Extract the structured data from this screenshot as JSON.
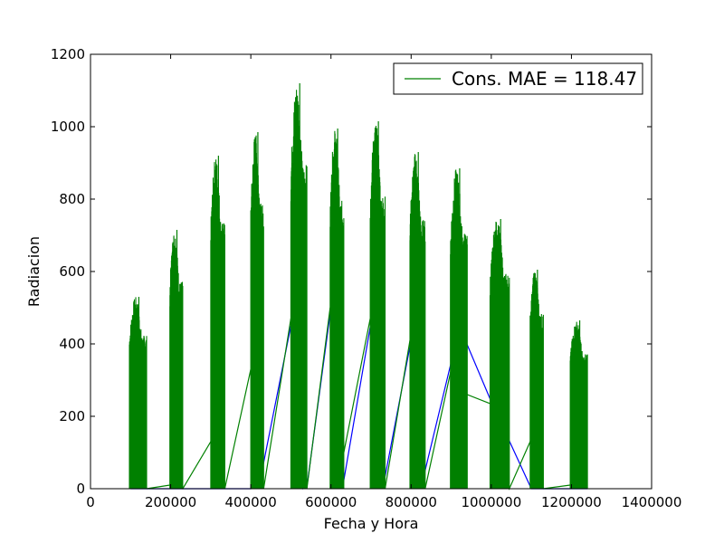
{
  "chart_data": {
    "type": "line",
    "title": "",
    "xlabel": "Fecha y Hora",
    "ylabel": "Radiacion",
    "xlim": [
      0,
      1400000
    ],
    "ylim": [
      0,
      1200
    ],
    "xticks": [
      0,
      200000,
      400000,
      600000,
      800000,
      1000000,
      1200000,
      1400000
    ],
    "yticks": [
      0,
      200,
      400,
      600,
      800,
      1000,
      1200
    ],
    "grid": false,
    "legend_position": "top-right",
    "legend": [
      {
        "label": "Cons. MAE = 118.47",
        "color": "#008000"
      }
    ],
    "colors": {
      "series_blue": "#0000ff",
      "series_green": "#008000"
    },
    "series": [
      {
        "color": "#0000ff",
        "x": [
          100000,
          140000,
          200000,
          230000,
          300000,
          330000,
          400000,
          410000,
          420000,
          500000,
          505000,
          510000,
          520000,
          530000,
          540000,
          600000,
          605000,
          610000,
          615000,
          620000,
          625000,
          630000,
          700000,
          705000,
          710000,
          715000,
          720000,
          725000,
          730000,
          800000,
          805000,
          810000,
          815000,
          820000,
          825000,
          900000,
          905000,
          910000,
          920000,
          1000000,
          1100000,
          1200000,
          1240000
        ],
        "y": [
          0,
          0,
          0,
          0,
          0,
          0,
          0,
          30,
          5,
          450,
          60,
          20,
          40,
          0,
          5,
          500,
          80,
          120,
          100,
          130,
          60,
          10,
          460,
          140,
          90,
          120,
          60,
          20,
          5,
          410,
          100,
          80,
          60,
          30,
          5,
          350,
          80,
          20,
          450,
          240,
          0,
          0,
          0
        ]
      },
      {
        "color": "#008000",
        "peaks": [
          {
            "x0": 97000,
            "x1": 140000,
            "max": 530
          },
          {
            "x0": 198000,
            "x1": 230000,
            "max": 715
          },
          {
            "x0": 300000,
            "x1": 335000,
            "max": 920
          },
          {
            "x0": 400000,
            "x1": 432000,
            "max": 985
          },
          {
            "x0": 500000,
            "x1": 540000,
            "max": 1120
          },
          {
            "x0": 598000,
            "x1": 632000,
            "max": 995
          },
          {
            "x0": 698000,
            "x1": 735000,
            "max": 1015
          },
          {
            "x0": 797000,
            "x1": 835000,
            "max": 930
          },
          {
            "x0": 898000,
            "x1": 940000,
            "max": 885
          },
          {
            "x0": 997000,
            "x1": 1045000,
            "max": 745
          },
          {
            "x0": 1097000,
            "x1": 1130000,
            "max": 605
          },
          {
            "x0": 1197000,
            "x1": 1240000,
            "max": 465
          }
        ],
        "connectors_x": [
          140000,
          198000,
          230000,
          300000,
          335000,
          400000,
          432000,
          500000,
          540000,
          598000,
          632000,
          698000,
          735000,
          797000,
          835000,
          898000,
          940000,
          997000,
          1045000,
          1097000,
          1130000,
          1197000
        ],
        "connectors_y": [
          0,
          10,
          0,
          130,
          0,
          330,
          0,
          470,
          0,
          500,
          100,
          470,
          0,
          410,
          0,
          320,
          260,
          235,
          0,
          130,
          0,
          10
        ]
      }
    ]
  }
}
